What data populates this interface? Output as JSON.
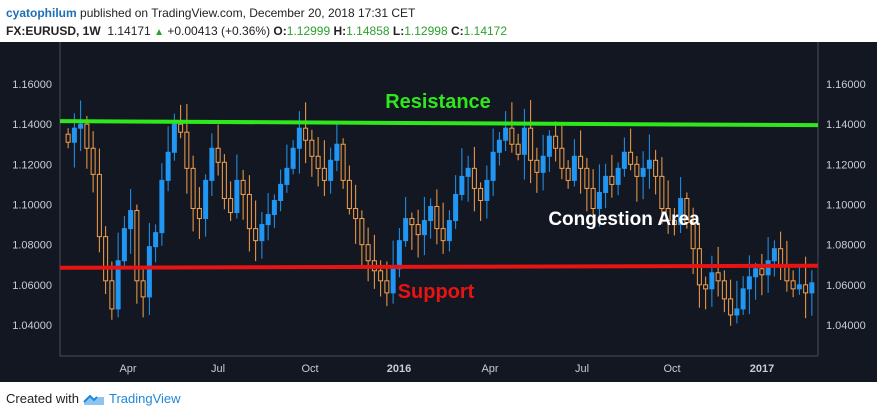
{
  "header": {
    "author": "cyatophilum",
    "published": "published on TradingView.com, December 20, 2018 17:31 CET",
    "symbol": "FX:EURUSD, 1W",
    "last": "1.14171",
    "change_arrow": "▲",
    "change": "+0.00413 (+0.36%)",
    "o_label": "O:",
    "o_value": "1.12999",
    "h_label": "H:",
    "h_value": "1.14858",
    "l_label": "L:",
    "l_value": "1.12998",
    "c_label": "C:",
    "c_value": "1.14172"
  },
  "footer": {
    "created_with": "Created with",
    "brand": "TradingView"
  },
  "colors": {
    "panel_bg": "#131722",
    "up_candle": "#2196f3",
    "down_candle": "#f7a14a",
    "resistance": "#2ee81c",
    "support": "#e81313",
    "label_text": "#ffffff"
  },
  "chart_data": {
    "type": "candlestick",
    "title": "",
    "xlabel": "",
    "ylabel": "",
    "y_ticks": [
      "1.04000",
      "1.06000",
      "1.08000",
      "1.10000",
      "1.12000",
      "1.14000",
      "1.16000"
    ],
    "x_ticks": [
      "Apr",
      "Jul",
      "Oct",
      "2016",
      "Apr",
      "Jul",
      "Oct",
      "2017"
    ],
    "ylim": [
      1.03,
      1.175
    ],
    "grid": false,
    "annotations": {
      "resistance": "Resistance",
      "support": "Support",
      "congestion": "Congestion Area"
    },
    "resistance_line": {
      "start": 1.1415,
      "end": 1.1395
    },
    "support_line": {
      "start": 1.0685,
      "end": 1.0695
    },
    "weekly_closes": [
      1.131,
      1.138,
      1.14,
      1.128,
      1.115,
      1.084,
      1.062,
      1.048,
      1.072,
      1.088,
      1.097,
      1.062,
      1.054,
      1.079,
      1.086,
      1.112,
      1.126,
      1.14,
      1.136,
      1.118,
      1.098,
      1.093,
      1.112,
      1.128,
      1.121,
      1.103,
      1.096,
      1.112,
      1.105,
      1.088,
      1.082,
      1.09,
      1.095,
      1.102,
      1.11,
      1.118,
      1.128,
      1.138,
      1.132,
      1.124,
      1.118,
      1.112,
      1.122,
      1.13,
      1.112,
      1.098,
      1.093,
      1.08,
      1.072,
      1.067,
      1.062,
      1.056,
      1.068,
      1.082,
      1.093,
      1.09,
      1.085,
      1.092,
      1.099,
      1.088,
      1.082,
      1.092,
      1.105,
      1.114,
      1.118,
      1.108,
      1.102,
      1.112,
      1.126,
      1.132,
      1.138,
      1.13,
      1.125,
      1.138,
      1.122,
      1.116,
      1.124,
      1.134,
      1.128,
      1.118,
      1.112,
      1.124,
      1.118,
      1.108,
      1.098,
      1.106,
      1.114,
      1.11,
      1.118,
      1.126,
      1.12,
      1.114,
      1.118,
      1.122,
      1.114,
      1.098,
      1.092,
      1.09,
      1.103,
      1.091,
      1.078,
      1.06,
      1.058,
      1.066,
      1.062,
      1.053,
      1.045,
      1.048,
      1.058,
      1.064,
      1.068,
      1.065,
      1.072,
      1.078,
      1.069,
      1.062,
      1.058,
      1.06,
      1.056,
      1.061
    ]
  }
}
